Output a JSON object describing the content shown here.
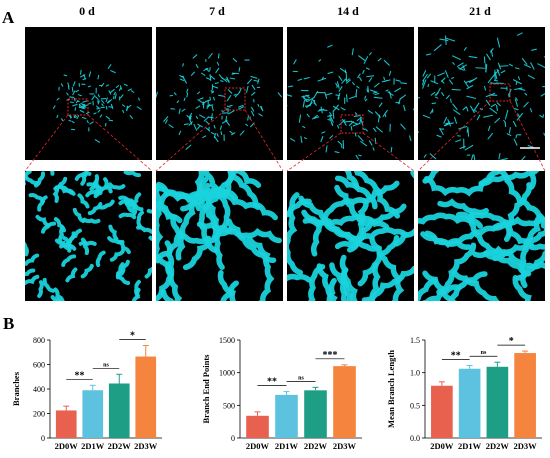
{
  "panel_a": {
    "letter": "A",
    "columns": [
      "0 d",
      "7 d",
      "14 d",
      "21 d"
    ]
  },
  "panel_b": {
    "letter": "B"
  },
  "colors": {
    "mito": "#19d3dc",
    "zoom_box": "#e2262a",
    "bars": [
      "#e8604e",
      "#5cc2df",
      "#1f9e86",
      "#f5843f"
    ]
  },
  "chart_data": [
    {
      "type": "bar",
      "categories": [
        "2D0W",
        "2D1W",
        "2D2W",
        "2D3W"
      ],
      "values": [
        225,
        390,
        445,
        665
      ],
      "errors": [
        35,
        40,
        75,
        90
      ],
      "title": "",
      "xlabel": "",
      "ylabel": "Branches",
      "ylim": [
        0,
        800
      ],
      "yticks": [
        "0",
        "200",
        "400",
        "600",
        "800"
      ],
      "annotations": [
        {
          "pair": [
            0,
            1
          ],
          "text": "**"
        },
        {
          "pair": [
            1,
            2
          ],
          "text": "ns"
        },
        {
          "pair": [
            2,
            3
          ],
          "text": "*"
        }
      ]
    },
    {
      "type": "bar",
      "categories": [
        "2D0W",
        "2D1W",
        "2D2W",
        "2D3W"
      ],
      "values": [
        340,
        660,
        730,
        1100
      ],
      "errors": [
        60,
        50,
        45,
        20
      ],
      "title": "",
      "xlabel": "",
      "ylabel": "Branch End Points",
      "ylim": [
        0,
        1500
      ],
      "yticks": [
        "0",
        "500",
        "1000",
        "1500"
      ],
      "annotations": [
        {
          "pair": [
            0,
            1
          ],
          "text": "**"
        },
        {
          "pair": [
            1,
            2
          ],
          "text": "ns"
        },
        {
          "pair": [
            2,
            3
          ],
          "text": "***"
        }
      ]
    },
    {
      "type": "bar",
      "categories": [
        "2D0W",
        "2D1W",
        "2D2W",
        "2D3W"
      ],
      "values": [
        0.8,
        1.06,
        1.09,
        1.3
      ],
      "errors": [
        0.06,
        0.05,
        0.07,
        0.03
      ],
      "title": "",
      "xlabel": "",
      "ylabel": "Mean Branch Length",
      "ylim": [
        0,
        1.5
      ],
      "yticks": [
        "0.0",
        "0.5",
        "1.0",
        "1.5"
      ],
      "annotations": [
        {
          "pair": [
            0,
            1
          ],
          "text": "**"
        },
        {
          "pair": [
            1,
            2
          ],
          "text": "ns"
        },
        {
          "pair": [
            2,
            3
          ],
          "text": "*"
        }
      ]
    }
  ]
}
